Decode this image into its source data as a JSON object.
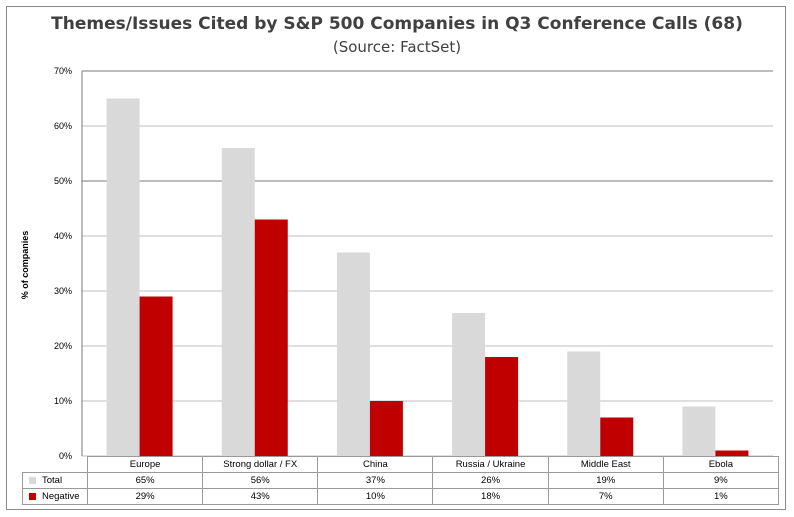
{
  "chart_data": {
    "type": "bar",
    "title": "Themes/Issues Cited by S&P 500 Companies in Q3 Conference Calls (68)",
    "subtitle": "(Source: FactSet)",
    "ylabel": "% of companies",
    "xlabel": "",
    "ylim": [
      0,
      70
    ],
    "yticks": [
      "0%",
      "10%",
      "20%",
      "30%",
      "40%",
      "50%",
      "60%",
      "70%"
    ],
    "grid": true,
    "categories": [
      "Europe",
      "Strong dollar / FX",
      "China",
      "Russia / Ukraine",
      "Middle East",
      "Ebola"
    ],
    "series": [
      {
        "name": "Total",
        "color": "#d9d9d9",
        "values": [
          65,
          56,
          37,
          26,
          19,
          9
        ],
        "labels": [
          "65%",
          "56%",
          "37%",
          "26%",
          "19%",
          "9%"
        ]
      },
      {
        "name": "Negative",
        "color": "#c00000",
        "values": [
          29,
          43,
          10,
          18,
          7,
          1
        ],
        "labels": [
          "29%",
          "43%",
          "10%",
          "18%",
          "7%",
          "1%"
        ]
      }
    ]
  }
}
